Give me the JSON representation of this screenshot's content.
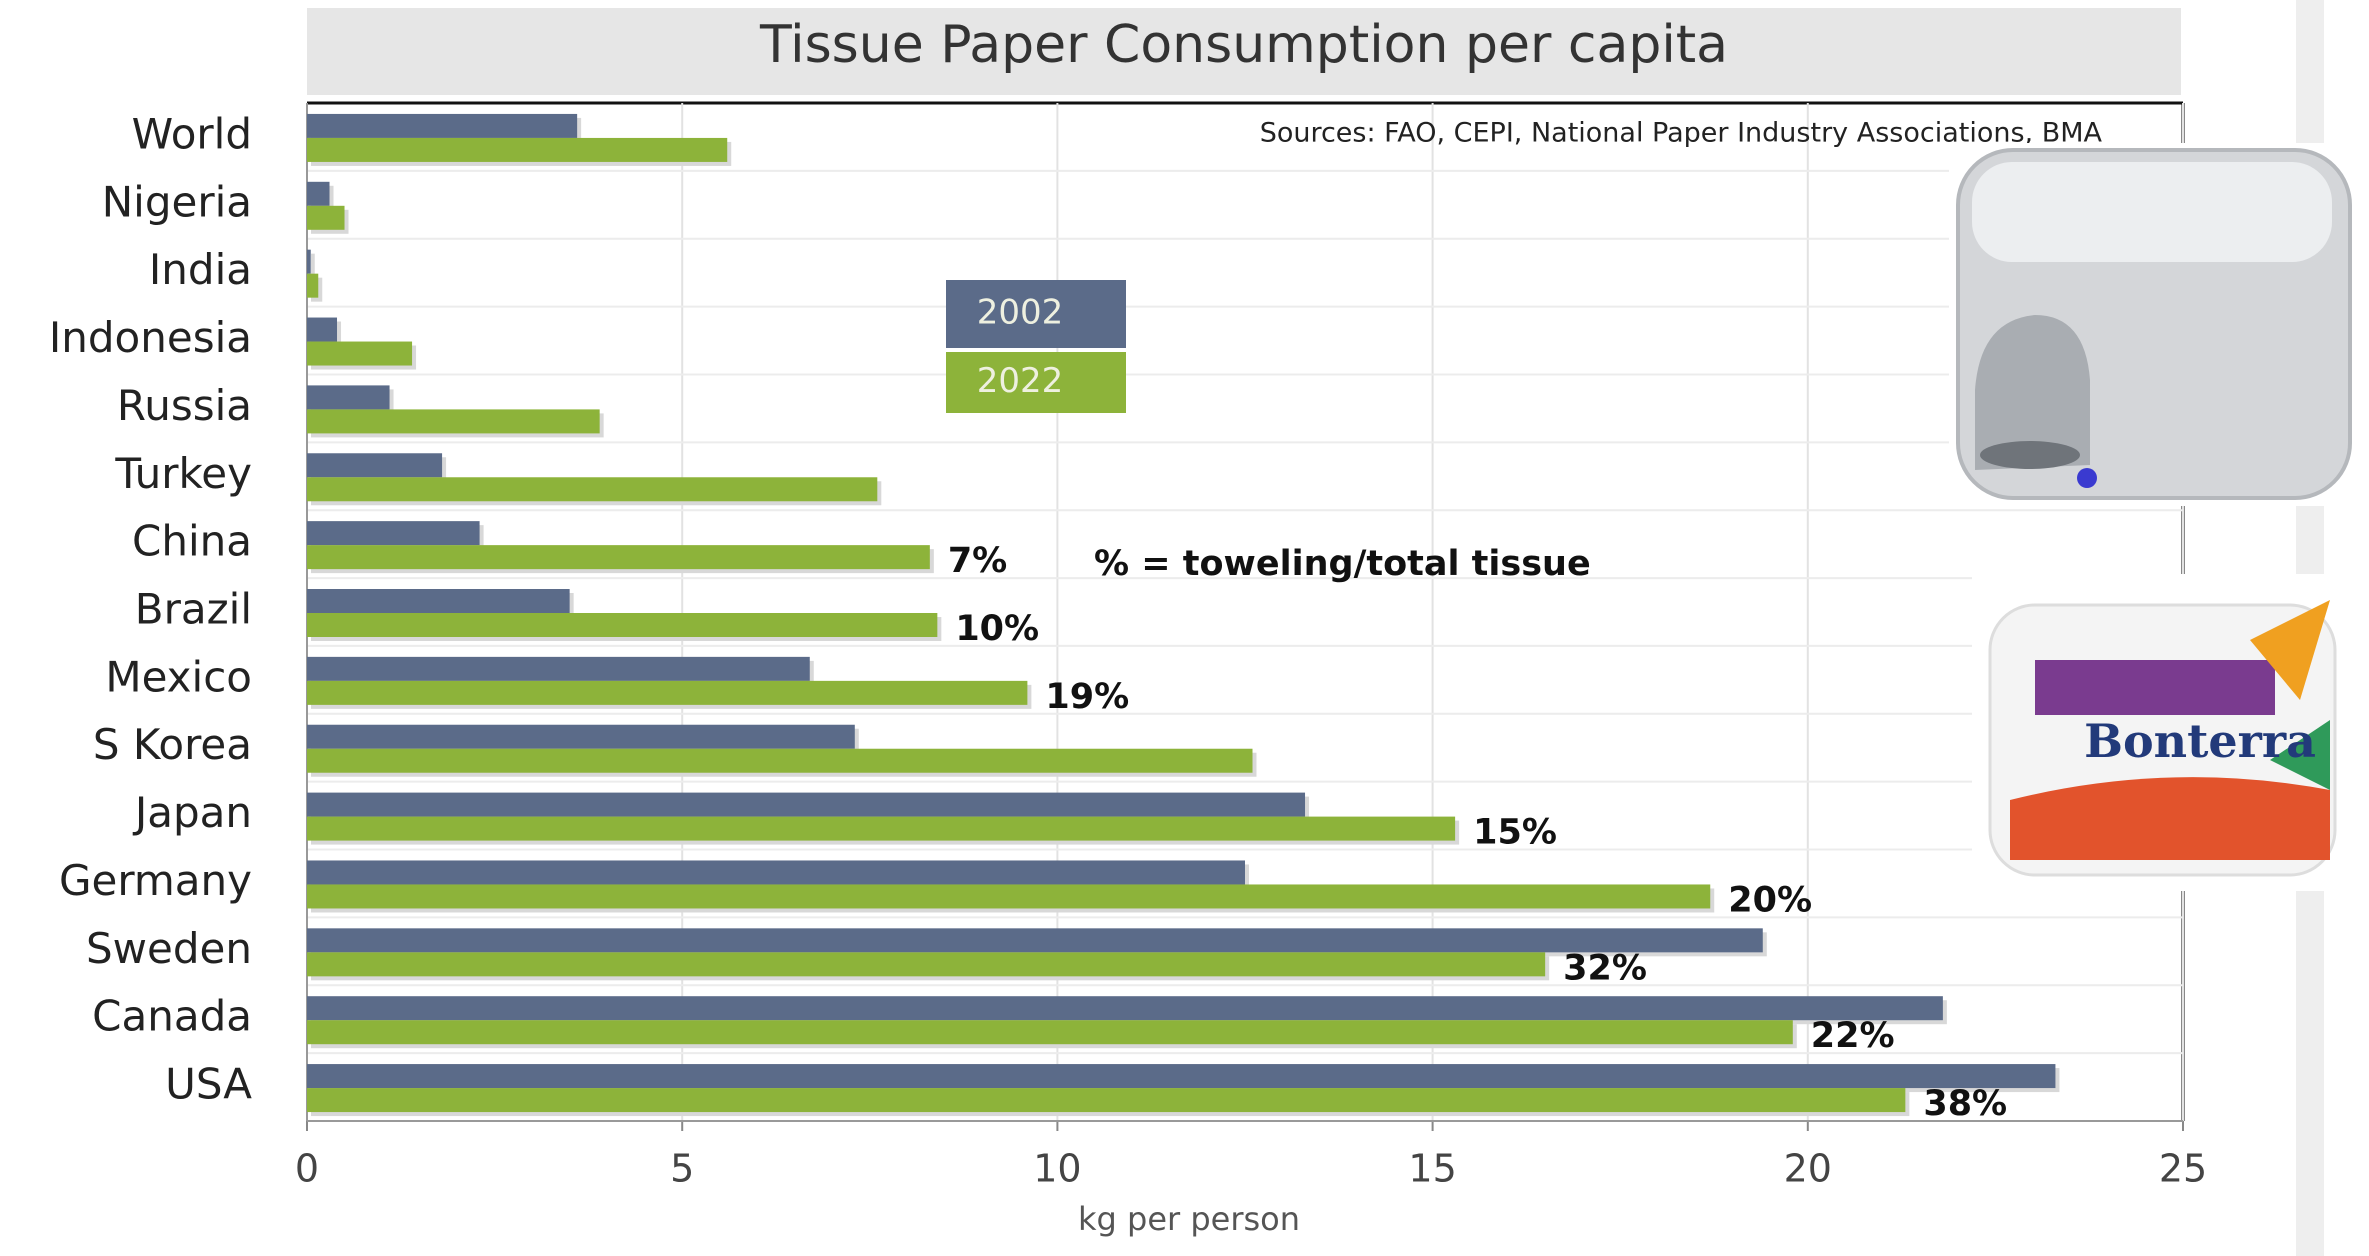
{
  "chart_data": {
    "type": "barh",
    "title": "Tissue Paper Consumption per capita",
    "source": "Sources: FAO, CEPI, National Paper Industry Associations, BMA",
    "annotation": "% = toweling/total tissue",
    "xlabel": "kg per person",
    "categories": [
      "World",
      "Nigeria",
      "India",
      "Indonesia",
      "Russia",
      "Turkey",
      "China",
      "Brazil",
      "Mexico",
      "S Korea",
      "Japan",
      "Germany",
      "Sweden",
      "Canada",
      "USA"
    ],
    "series": [
      {
        "name": "2002",
        "color": "#5b6b89",
        "values": [
          3.6,
          0.3,
          0.05,
          0.4,
          1.1,
          1.8,
          2.3,
          3.5,
          6.7,
          7.3,
          13.3,
          12.5,
          19.4,
          21.8,
          23.3
        ]
      },
      {
        "name": "2022",
        "color": "#8db33a",
        "values": [
          5.6,
          0.5,
          0.15,
          1.4,
          3.9,
          7.6,
          8.3,
          8.4,
          9.6,
          12.6,
          15.3,
          18.7,
          16.5,
          19.8,
          21.3
        ]
      }
    ],
    "toweling_labels": [
      null,
      null,
      null,
      null,
      null,
      null,
      "7%",
      "10%",
      "19%",
      null,
      "15%",
      "20%",
      "32%",
      "22%",
      "38%"
    ],
    "xlim": [
      0,
      25
    ],
    "xticks": [
      0,
      5,
      10,
      15,
      20,
      25
    ],
    "grid": true,
    "product_text": "Bonterra"
  }
}
